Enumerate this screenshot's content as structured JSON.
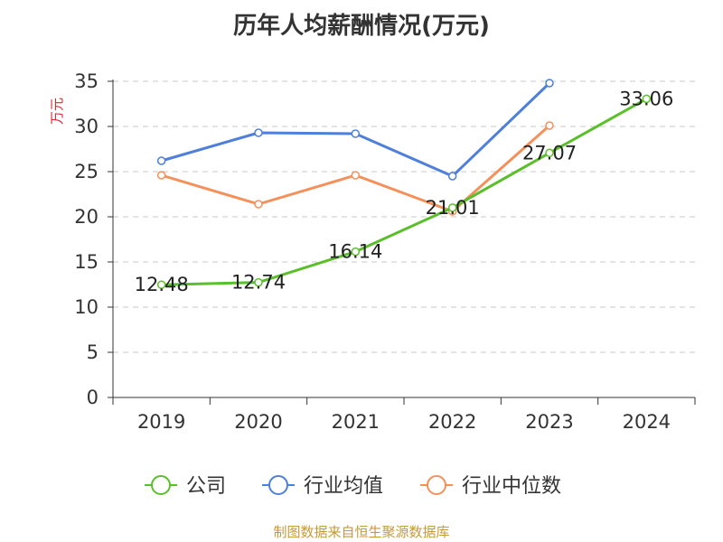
{
  "chart_data": {
    "type": "line",
    "title": "历年人均薪酬情况(万元)",
    "ylabel": "万元",
    "xlabel": "",
    "categories": [
      "2019",
      "2020",
      "2021",
      "2022",
      "2023",
      "2024"
    ],
    "ylim": [
      0,
      35
    ],
    "yticks": [
      0,
      5,
      10,
      15,
      20,
      25,
      30,
      35
    ],
    "grid": true,
    "legend_position": "bottom",
    "series": [
      {
        "name": "公司",
        "color": "#5bbf2c",
        "values": [
          12.48,
          12.74,
          16.14,
          21.01,
          27.07,
          33.06
        ],
        "labels": [
          "12.48",
          "12.74",
          "16.14",
          "21.01",
          "27.07",
          "33.06"
        ]
      },
      {
        "name": "行业均值",
        "color": "#4e7fdb",
        "values": [
          26.2,
          29.3,
          29.2,
          24.5,
          34.8,
          null
        ]
      },
      {
        "name": "行业中位数",
        "color": "#f5905a",
        "values": [
          24.6,
          21.4,
          24.6,
          20.6,
          30.1,
          null
        ]
      }
    ]
  },
  "source_text": "制图数据来自恒生聚源数据库"
}
